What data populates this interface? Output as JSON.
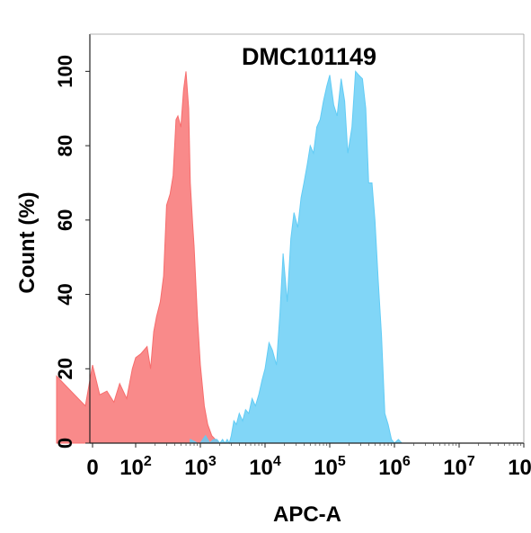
{
  "chart_data": {
    "type": "area",
    "title": "DMC101149",
    "xlabel": "APC-A",
    "ylabel": "Count  (%)",
    "x_scale": "biexponential",
    "xlim": [
      -100,
      100000000
    ],
    "ylim": [
      0,
      110
    ],
    "grid": false,
    "legend": "none",
    "x_ticks": [
      {
        "value": 0,
        "label": "0"
      },
      {
        "value": 100,
        "label": "10",
        "exp": "2"
      },
      {
        "value": 1000,
        "label": "10",
        "exp": "3"
      },
      {
        "value": 10000,
        "label": "10",
        "exp": "4"
      },
      {
        "value": 100000,
        "label": "10",
        "exp": "5"
      },
      {
        "value": 1000000,
        "label": "10",
        "exp": "6"
      },
      {
        "value": 10000000,
        "label": "10",
        "exp": "7"
      },
      {
        "value": 100000000,
        "label": "10",
        "exp": "8"
      }
    ],
    "y_ticks": [
      {
        "value": 0,
        "label": "0"
      },
      {
        "value": 20,
        "label": "20"
      },
      {
        "value": 40,
        "label": "40"
      },
      {
        "value": 60,
        "label": "60"
      },
      {
        "value": 80,
        "label": "80"
      },
      {
        "value": 100,
        "label": "100"
      }
    ],
    "series": [
      {
        "color": "#f76d6d",
        "x": [
          -100,
          -60,
          -20,
          0,
          20,
          40,
          50,
          60,
          75,
          90,
          100,
          120,
          150,
          170,
          190,
          210,
          240,
          270,
          300,
          340,
          380,
          420,
          450,
          500,
          550,
          600,
          660,
          700,
          760,
          800,
          900,
          1000,
          1150,
          1300,
          1500,
          1700,
          2000
        ],
        "y": [
          18,
          14,
          10,
          21,
          13,
          14,
          11,
          16,
          12,
          20,
          23,
          24,
          26,
          20,
          30,
          34,
          38,
          45,
          64,
          67,
          72,
          87,
          88,
          85,
          95,
          100,
          90,
          70,
          59,
          53,
          34,
          21,
          10,
          5,
          2,
          1,
          0
        ]
      },
      {
        "color": "#62ccf5",
        "x": [
          700,
          900,
          1000,
          1200,
          1400,
          1600,
          1800,
          2000,
          2200,
          2400,
          2600,
          2800,
          3000,
          3300,
          3600,
          4000,
          4500,
          5000,
          5600,
          6300,
          7100,
          8000,
          9000,
          10000,
          11500,
          13000,
          15000,
          17000,
          19000,
          22000,
          25000,
          28000,
          32000,
          36000,
          40000,
          45000,
          50000,
          56000,
          63000,
          71000,
          80000,
          90000,
          100000,
          115000,
          130000,
          150000,
          170000,
          190000,
          220000,
          250000,
          280000,
          320000,
          360000,
          400000,
          450000,
          500000,
          560000,
          630000,
          710000,
          800000,
          900000,
          1000000,
          1150000,
          1300000,
          1500000,
          1700000,
          2000000,
          2300000
        ],
        "y": [
          1,
          0,
          0,
          2,
          0,
          1,
          1,
          0,
          1,
          0,
          1,
          0,
          2,
          6,
          5,
          8,
          6,
          9,
          8,
          12,
          10,
          13,
          17,
          20,
          27,
          25,
          21,
          35,
          51,
          38,
          55,
          62,
          58,
          66,
          70,
          75,
          80,
          78,
          85,
          87,
          92,
          96,
          99,
          91,
          88,
          98,
          92,
          78,
          85,
          100,
          99,
          98,
          90,
          70,
          70,
          60,
          44,
          29,
          8,
          5,
          1,
          0,
          1,
          0,
          0,
          0,
          0,
          0
        ]
      }
    ]
  }
}
